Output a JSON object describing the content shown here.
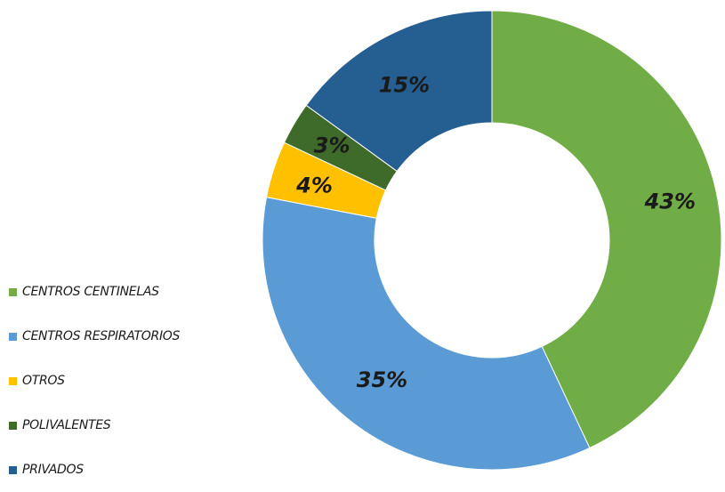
{
  "chart_data": {
    "type": "pie",
    "donut": true,
    "categories": [
      "CENTROS CENTINELAS",
      "CENTROS RESPIRATORIOS",
      "OTROS",
      "POLIVALENTES",
      "PRIVADOS"
    ],
    "values": [
      43,
      35,
      4,
      3,
      15
    ],
    "data_labels": [
      "43%",
      "35%",
      "4%",
      "3%",
      "15%"
    ],
    "colors": [
      "#70ad47",
      "#5b9bd5",
      "#ffc000",
      "#3e6b2a",
      "#255e91"
    ],
    "legend_position": "left-bottom",
    "title": ""
  }
}
